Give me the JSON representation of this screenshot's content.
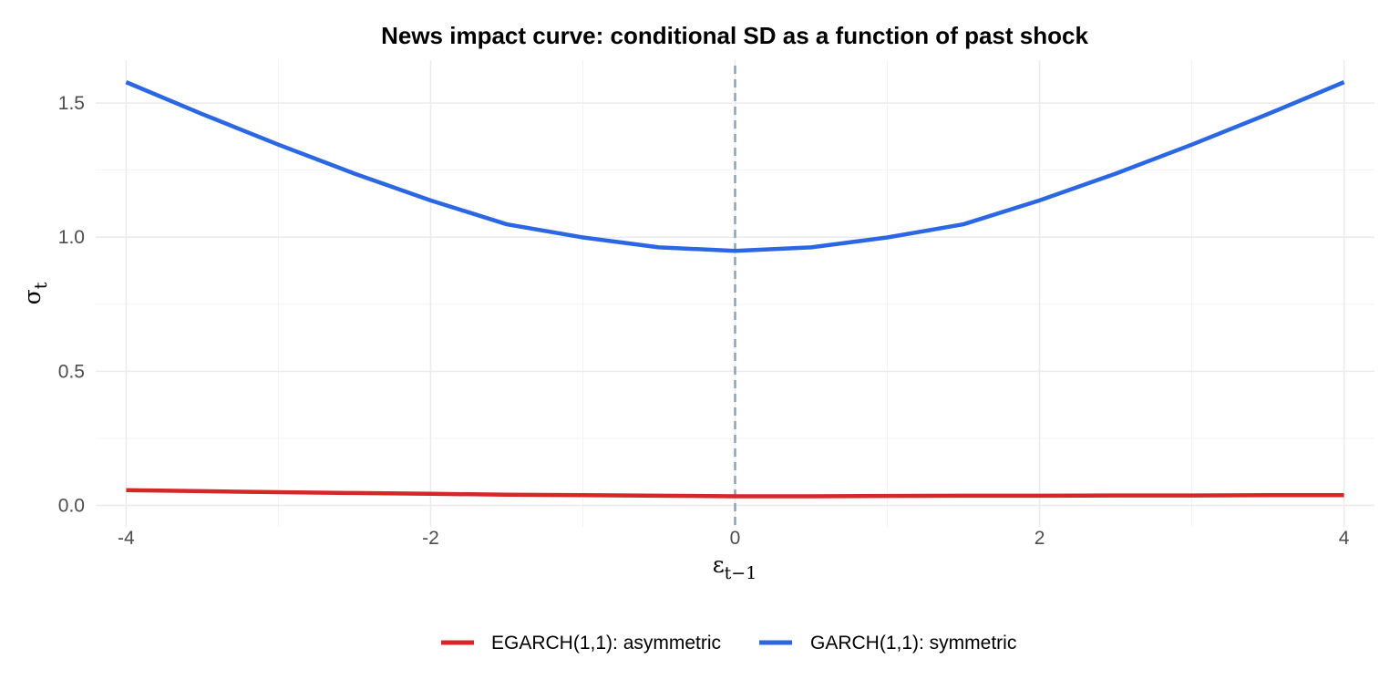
{
  "chart_data": {
    "type": "line",
    "title": "News impact curve: conditional SD as a function of past shock",
    "xlabel": {
      "main": "ε",
      "sub": "t−1"
    },
    "ylabel": {
      "main": "σ",
      "sub": "t"
    },
    "xlim": [
      -4.2,
      4.2
    ],
    "ylim": [
      -0.08,
      1.66
    ],
    "x_ticks": [
      -4,
      -2,
      0,
      2,
      4
    ],
    "x_tick_labels": [
      "-4",
      "-2",
      "0",
      "2",
      "4"
    ],
    "y_ticks": [
      0,
      0.5,
      1,
      1.5
    ],
    "y_tick_labels": [
      "0.0",
      "0.5",
      "1.0",
      "1.5"
    ],
    "grid": true,
    "reference_line": {
      "x": 0,
      "style": "dashed",
      "color": "#8da0bb"
    },
    "legend_position": "bottom",
    "series": [
      {
        "name": "EGARCH(1,1): asymmetric",
        "color": "#d62728",
        "x": [
          -4,
          -3.5,
          -3,
          -2.5,
          -2,
          -1.5,
          -1,
          -0.5,
          0,
          0.5,
          1,
          1.5,
          2,
          2.5,
          3,
          3.5,
          4
        ],
        "y": [
          0.057,
          0.053,
          0.049,
          0.046,
          0.043,
          0.04,
          0.038,
          0.036,
          0.034,
          0.034,
          0.035,
          0.036,
          0.036,
          0.037,
          0.037,
          0.038,
          0.038
        ]
      },
      {
        "name": "GARCH(1,1): symmetric",
        "color": "#2b67e3",
        "x": [
          -4,
          -3.5,
          -3,
          -2.5,
          -2,
          -1.5,
          -1,
          -0.5,
          0,
          0.5,
          1,
          1.5,
          2,
          2.5,
          3,
          3.5,
          4
        ],
        "y": [
          1.578,
          1.459,
          1.345,
          1.237,
          1.137,
          1.048,
          0.999,
          0.962,
          0.949,
          0.962,
          0.999,
          1.048,
          1.137,
          1.237,
          1.345,
          1.459,
          1.578
        ]
      }
    ]
  }
}
